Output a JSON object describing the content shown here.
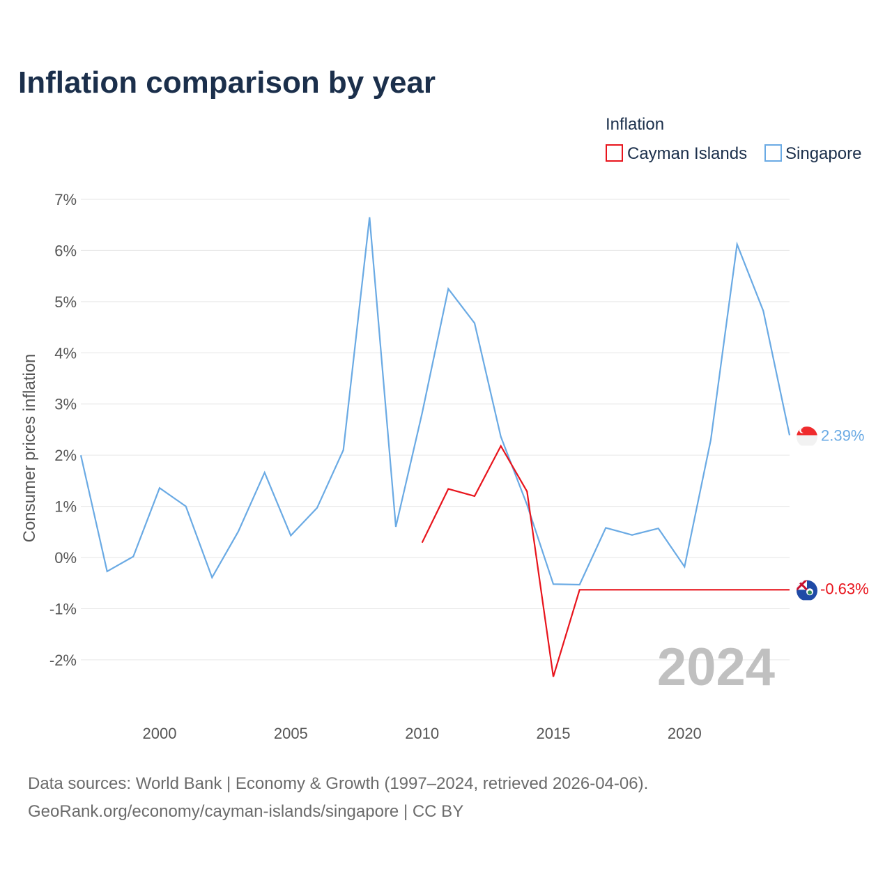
{
  "colors": {
    "cayman": "#e8141c",
    "singapore": "#6aaae4",
    "title": "#1b2f4b",
    "grid": "#e6e6e6"
  },
  "chart_data": {
    "type": "line",
    "title": "Inflation comparison by year",
    "legend_title": "Inflation",
    "legend_placement": "top-right",
    "ylabel": "Consumer prices inflation",
    "xlabel": "",
    "xlim": [
      1997,
      2024
    ],
    "ylim": [
      -2.9,
      7
    ],
    "x_ticks": [
      2000,
      2005,
      2010,
      2015,
      2020
    ],
    "y_ticks": [
      {
        "value": 7,
        "label": "7%"
      },
      {
        "value": 6,
        "label": "6%"
      },
      {
        "value": 5,
        "label": "5%"
      },
      {
        "value": 4,
        "label": "4%"
      },
      {
        "value": 3,
        "label": "3%"
      },
      {
        "value": 2,
        "label": "2%"
      },
      {
        "value": 1,
        "label": "1%"
      },
      {
        "value": 0,
        "label": "0%"
      },
      {
        "value": -1,
        "label": "-1%"
      },
      {
        "value": -2,
        "label": "-2%"
      }
    ],
    "year_label": "2024",
    "series": [
      {
        "name": "Cayman Islands",
        "color": "#e8141c",
        "end_label": "-0.63%",
        "flag": "cayman-islands-flag-icon",
        "points": [
          [
            2010,
            0.29
          ],
          [
            2011,
            1.34
          ],
          [
            2012,
            1.2
          ],
          [
            2013,
            2.18
          ],
          [
            2014,
            1.29
          ],
          [
            2015,
            -2.33
          ],
          [
            2016,
            -0.63
          ],
          [
            2024,
            -0.63
          ]
        ]
      },
      {
        "name": "Singapore",
        "color": "#6aaae4",
        "end_label": "2.39%",
        "flag": "singapore-flag-icon",
        "points": [
          [
            1997,
            2.0
          ],
          [
            1998,
            -0.27
          ],
          [
            1999,
            0.02
          ],
          [
            2000,
            1.36
          ],
          [
            2001,
            1.0
          ],
          [
            2002,
            -0.39
          ],
          [
            2003,
            0.51
          ],
          [
            2004,
            1.66
          ],
          [
            2005,
            0.43
          ],
          [
            2006,
            0.97
          ],
          [
            2007,
            2.1
          ],
          [
            2008,
            6.65
          ],
          [
            2009,
            0.6
          ],
          [
            2010,
            2.82
          ],
          [
            2011,
            5.25
          ],
          [
            2012,
            4.58
          ],
          [
            2013,
            2.36
          ],
          [
            2014,
            1.03
          ],
          [
            2015,
            -0.52
          ],
          [
            2016,
            -0.53
          ],
          [
            2017,
            0.58
          ],
          [
            2018,
            0.44
          ],
          [
            2019,
            0.57
          ],
          [
            2020,
            -0.18
          ],
          [
            2021,
            2.3
          ],
          [
            2022,
            6.12
          ],
          [
            2023,
            4.82
          ],
          [
            2024,
            2.39
          ]
        ]
      }
    ]
  },
  "footer": {
    "line1": "Data sources: World Bank | Economy & Growth (1997–2024, retrieved 2026-04-06).",
    "line2": "GeoRank.org/economy/cayman-islands/singapore | CC BY"
  }
}
